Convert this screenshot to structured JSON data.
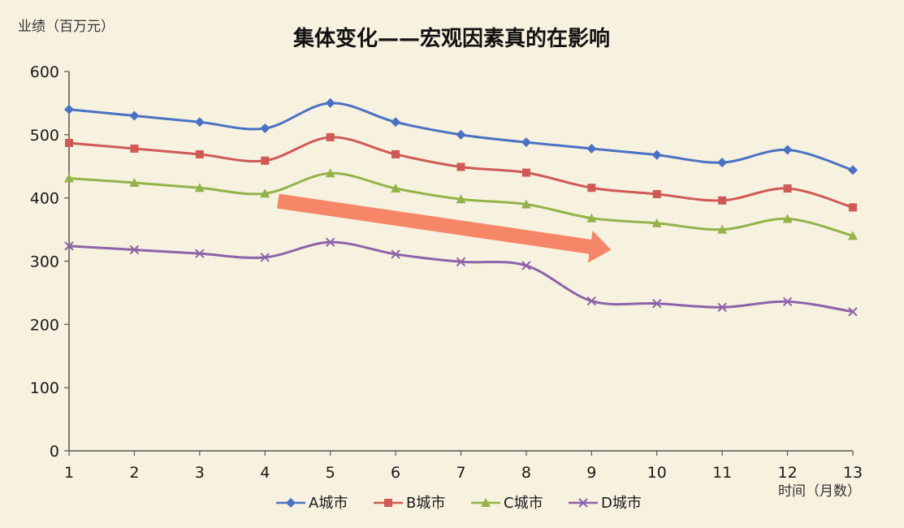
{
  "chart_data": {
    "type": "line",
    "title": "集体变化——宏观因素真的在影响",
    "ylabel": "业绩（百万元）",
    "xlabel": "时间（月数）",
    "x": [
      1,
      2,
      3,
      4,
      5,
      6,
      7,
      8,
      9,
      10,
      11,
      12,
      13
    ],
    "ylim": [
      0,
      600
    ],
    "yticks": [
      0,
      100,
      200,
      300,
      400,
      500,
      600
    ],
    "grid": false,
    "legend_position": "bottom",
    "series": [
      {
        "name": "A城市",
        "color": "#4a72c4",
        "marker": "diamond",
        "values": [
          540,
          530,
          520,
          510,
          550,
          520,
          500,
          488,
          478,
          468,
          456,
          476,
          444
        ]
      },
      {
        "name": "B城市",
        "color": "#cf5a55",
        "marker": "square",
        "values": [
          487,
          478,
          469,
          459,
          496,
          469,
          449,
          440,
          416,
          406,
          396,
          415,
          385
        ]
      },
      {
        "name": "C城市",
        "color": "#93b34a",
        "marker": "triangle",
        "values": [
          431,
          424,
          416,
          407,
          439,
          415,
          398,
          390,
          368,
          360,
          350,
          367,
          340
        ]
      },
      {
        "name": "D城市",
        "color": "#8c63a8",
        "marker": "x",
        "values": [
          324,
          318,
          312,
          306,
          330,
          311,
          299,
          293,
          237,
          233,
          227,
          236,
          220
        ]
      }
    ],
    "annotation": {
      "type": "arrow",
      "color": "#f47a5a",
      "from_x": 4.2,
      "from_y": 395,
      "to_x": 9.3,
      "to_y": 318
    }
  }
}
